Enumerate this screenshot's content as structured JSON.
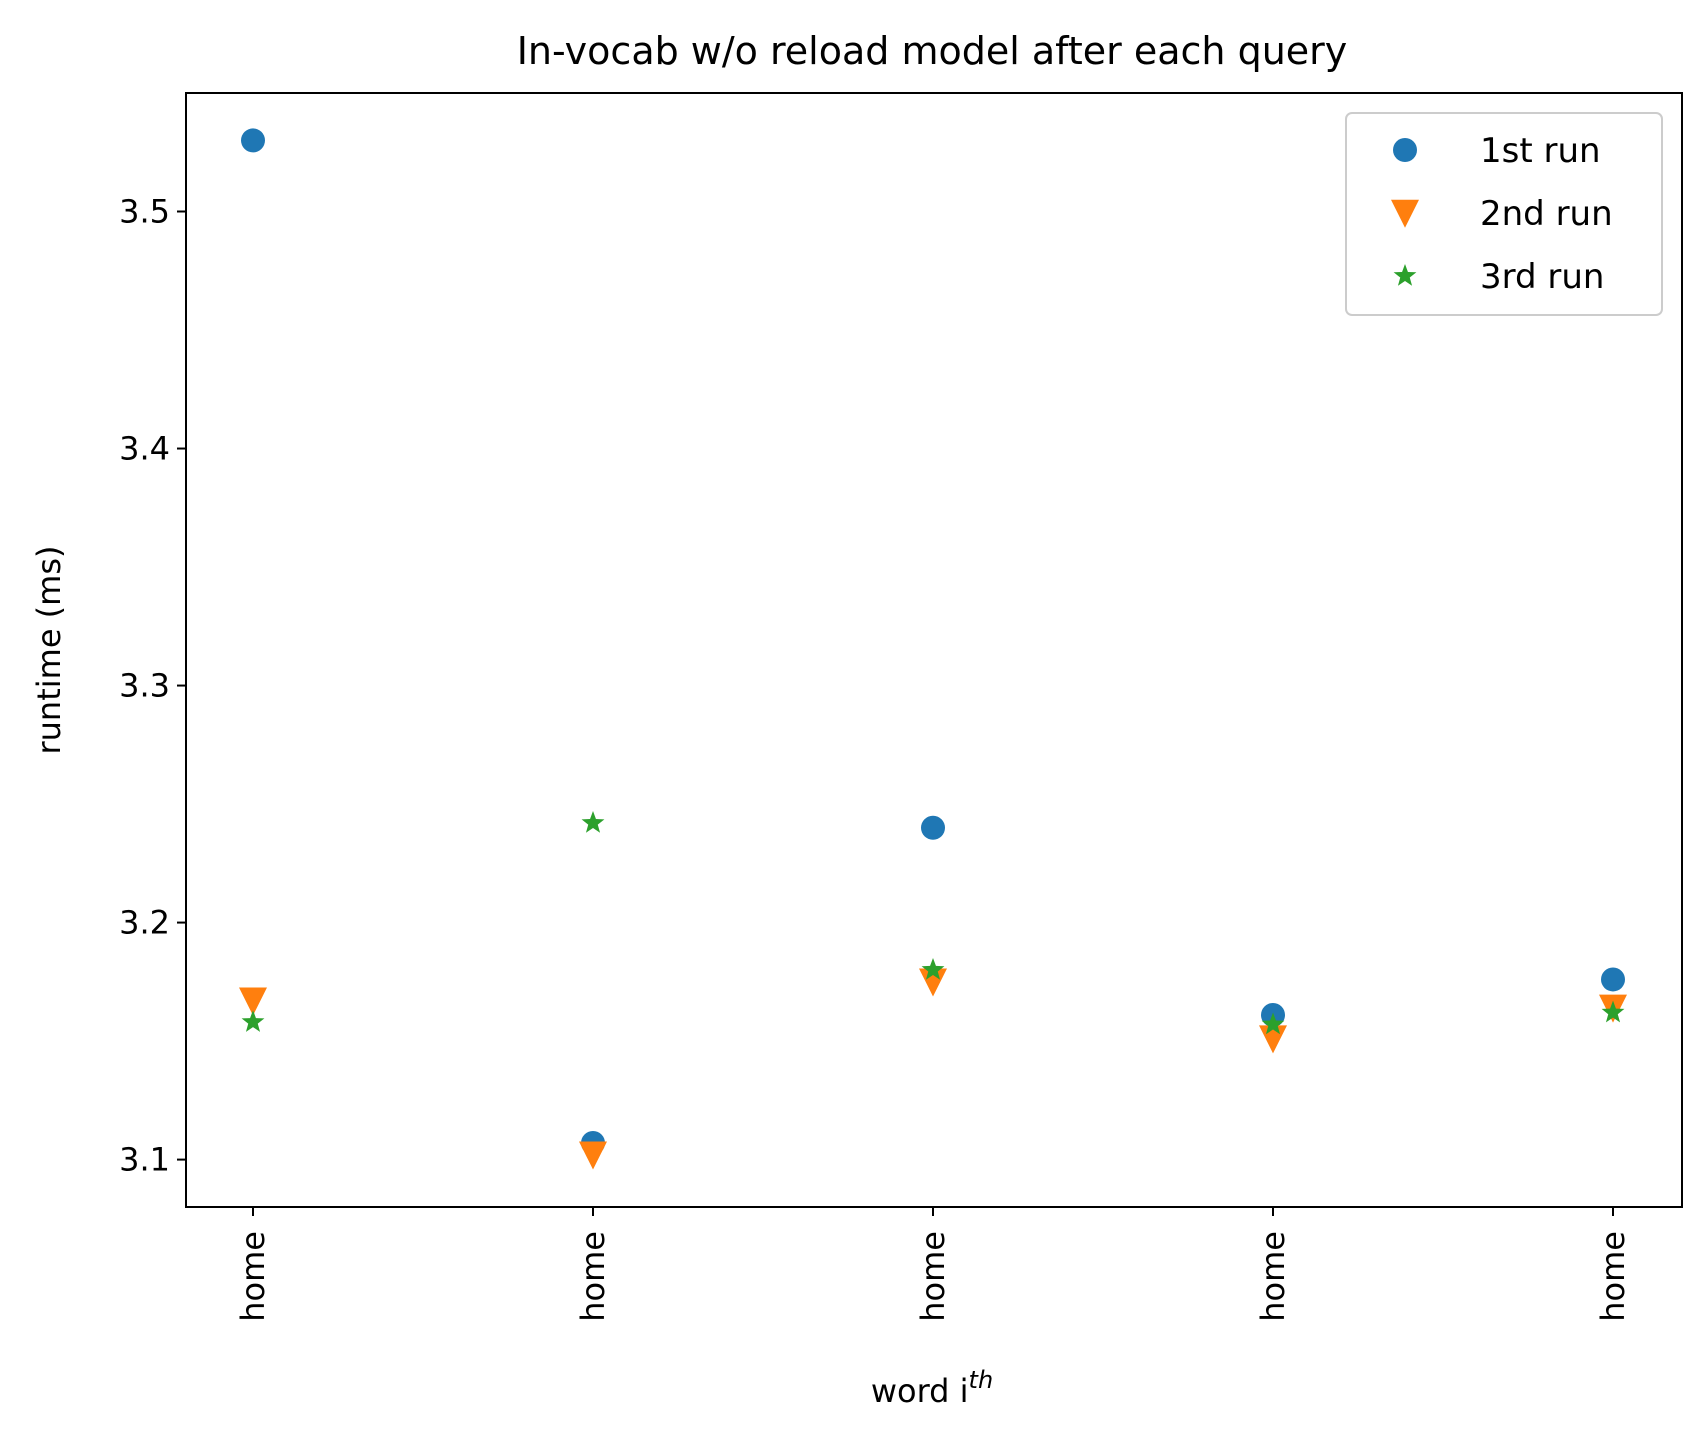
{
  "chart_data": {
    "type": "scatter",
    "title": "In-vocab w/o reload model after each query",
    "xlabel": "word i",
    "xlabel_superscript": "th",
    "ylabel": "runtime (ms)",
    "categories": [
      "home",
      "home",
      "home",
      "home",
      "home"
    ],
    "ylim": [
      3.08,
      3.55
    ],
    "yticks": [
      3.1,
      3.2,
      3.3,
      3.4,
      3.5
    ],
    "ytick_labels": [
      "3.1",
      "3.2",
      "3.3",
      "3.4",
      "3.5"
    ],
    "grid": false,
    "legend_position": "upper right",
    "series": [
      {
        "name": "1st run",
        "marker": "circle",
        "color": "#1f77b4",
        "values": [
          3.53,
          3.107,
          3.24,
          3.161,
          3.176
        ]
      },
      {
        "name": "2nd run",
        "marker": "triangle-down",
        "color": "#ff7f0e",
        "values": [
          3.167,
          3.102,
          3.175,
          3.151,
          3.164
        ]
      },
      {
        "name": "3rd run",
        "marker": "star",
        "color": "#2ca02c",
        "values": [
          3.158,
          3.242,
          3.18,
          3.157,
          3.162
        ]
      }
    ]
  }
}
